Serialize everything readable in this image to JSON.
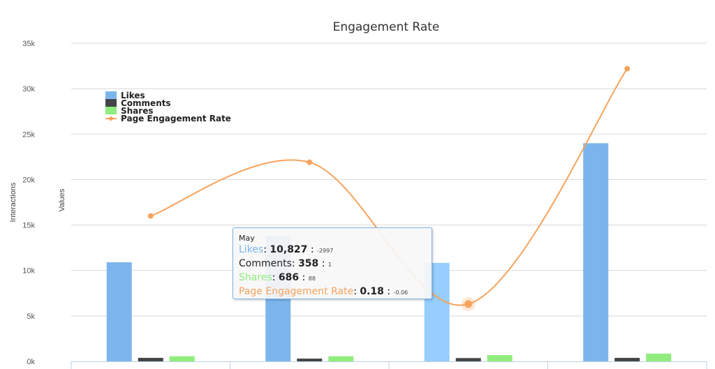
{
  "chart_data": {
    "type": "bar",
    "title": "Engagement Rate",
    "y_axis_left_label": "Interactions",
    "y_axis_right_label": "Values",
    "y_ticks": [
      "0k",
      "5k",
      "10k",
      "15k",
      "20k",
      "25k",
      "30k",
      "35k"
    ],
    "ylim": [
      0,
      35000
    ],
    "grid": true,
    "legend_position": "top-left",
    "categories": [
      "",
      "May",
      "",
      ""
    ],
    "series": [
      {
        "name": "Likes",
        "type": "bar",
        "color": "#7cb5ec",
        "values": [
          10900,
          13800,
          10827,
          24000
        ]
      },
      {
        "name": "Comments",
        "type": "bar",
        "color": "#434348",
        "values": [
          380,
          300,
          358,
          380
        ]
      },
      {
        "name": "Shares",
        "type": "bar",
        "color": "#90ed7d",
        "values": [
          560,
          560,
          686,
          850
        ]
      },
      {
        "name": "Page Engagement Rate",
        "type": "spline",
        "color": "#f7a35c",
        "values": [
          16000,
          21900,
          6300,
          32200
        ]
      }
    ]
  },
  "tooltip": {
    "title": "May",
    "rows": [
      {
        "label": "Likes",
        "value": "10,827",
        "change": "-2997",
        "color": "#7cb5ec"
      },
      {
        "label": "Comments",
        "value": "358",
        "change": "1",
        "color": "#222222"
      },
      {
        "label": "Shares",
        "value": "686",
        "change": "88",
        "color": "#90ed7d"
      },
      {
        "label": "Page Engagement Rate",
        "value": "0.18",
        "change": "-0.06",
        "color": "#f7a35c"
      }
    ]
  }
}
